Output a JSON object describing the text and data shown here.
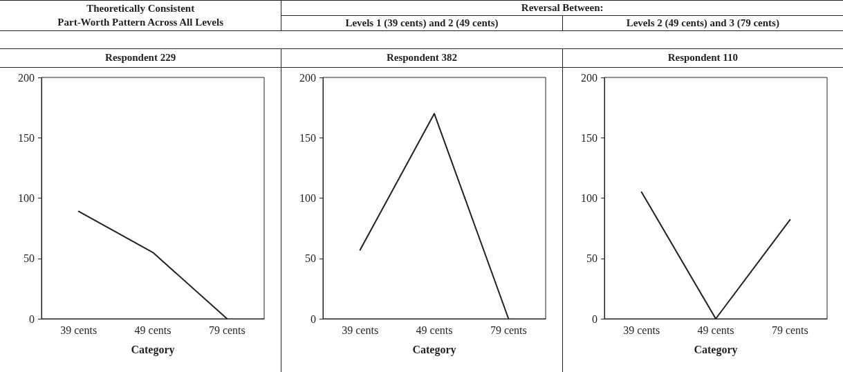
{
  "chart_data": [
    {
      "type": "line",
      "title": "Respondent 229",
      "annotations": [
        "Theoretically Consistent\nPart-Worth Pattern Across All Levels"
      ],
      "categories": [
        "39 cents",
        "49 cents",
        "79 cents"
      ],
      "xlabel": "Category",
      "ylim": [
        0,
        200
      ],
      "yticks": [
        0,
        50,
        100,
        150,
        200
      ],
      "grid": false,
      "marker": "none",
      "line_style": "solid",
      "series": [
        {
          "color": "#231f20",
          "values": [
            89,
            55,
            0
          ]
        }
      ]
    },
    {
      "type": "line",
      "title": "Respondent 382",
      "annotations": [
        "Reversal Between:",
        "Levels 1 (39 cents) and 2 (49 cents)"
      ],
      "categories": [
        "39 cents",
        "49 cents",
        "79 cents"
      ],
      "xlabel": "Category",
      "ylim": [
        0,
        200
      ],
      "yticks": [
        0,
        50,
        100,
        150,
        200
      ],
      "grid": false,
      "marker": "none",
      "line_style": "solid",
      "series": [
        {
          "color": "#231f20",
          "values": [
            57,
            170,
            0
          ]
        }
      ]
    },
    {
      "type": "line",
      "title": "Respondent 110",
      "annotations": [
        "Levels 2 (49 cents) and 3 (79 cents)"
      ],
      "categories": [
        "39 cents",
        "49 cents",
        "79 cents"
      ],
      "xlabel": "Category",
      "ylim": [
        0,
        200
      ],
      "yticks": [
        0,
        50,
        100,
        150,
        200
      ],
      "grid": false,
      "marker": "none",
      "line_style": "solid",
      "series": [
        {
          "color": "#231f20",
          "values": [
            105,
            0,
            82
          ]
        }
      ]
    }
  ]
}
